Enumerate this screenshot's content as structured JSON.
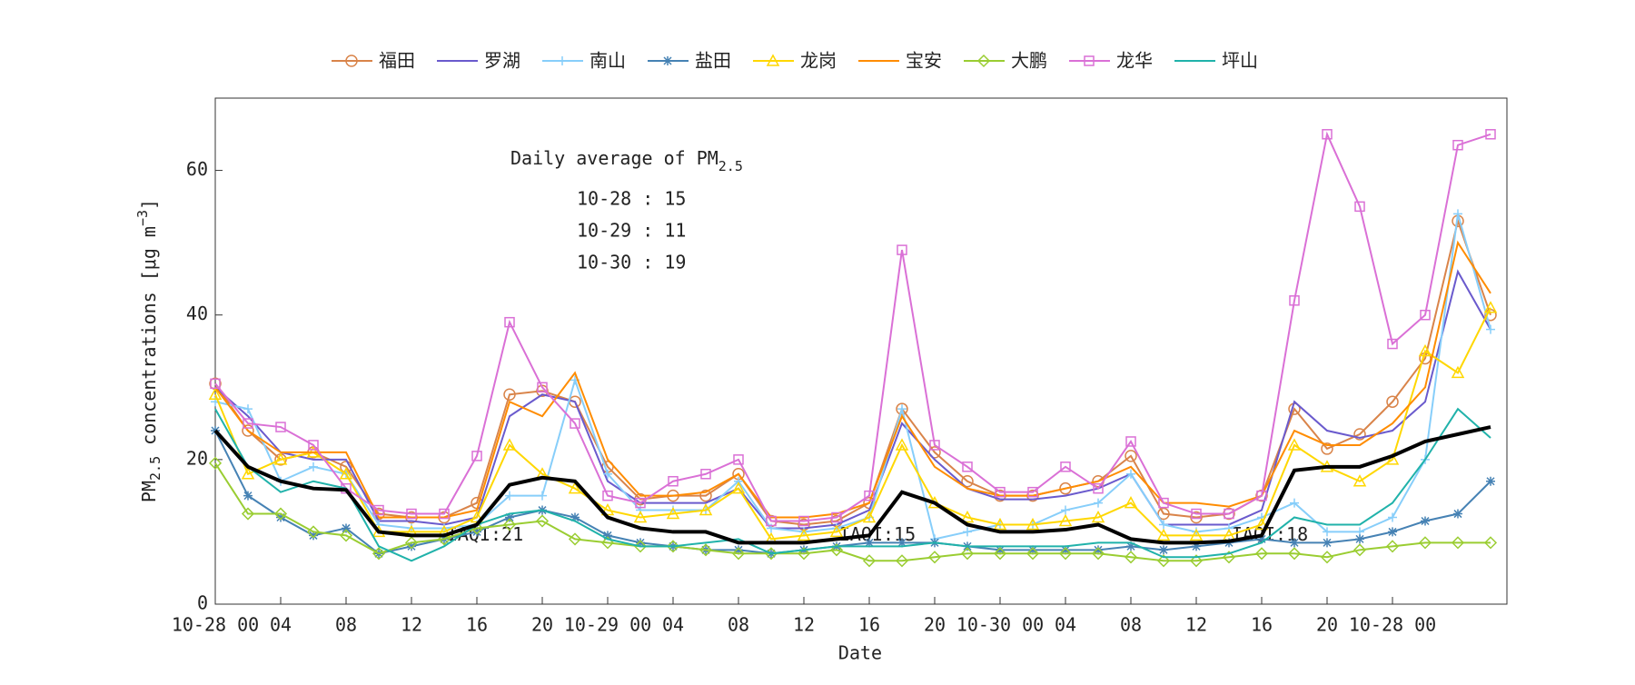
{
  "chart_data": {
    "type": "line",
    "x": [
      0,
      2,
      4,
      6,
      8,
      10,
      12,
      14,
      16,
      18,
      20,
      22,
      24,
      26,
      28,
      30,
      32,
      34,
      36,
      38,
      40,
      42,
      44,
      46,
      48,
      50,
      52,
      54,
      56,
      58,
      60,
      62,
      64,
      66,
      68,
      70,
      72,
      74,
      76,
      78
    ],
    "xlim": [
      0,
      79
    ],
    "xticks": [
      {
        "value": 0,
        "label": "10-28 00"
      },
      {
        "value": 4,
        "label": "04"
      },
      {
        "value": 8,
        "label": "08"
      },
      {
        "value": 12,
        "label": "12"
      },
      {
        "value": 16,
        "label": "16"
      },
      {
        "value": 20,
        "label": "20"
      },
      {
        "value": 24,
        "label": "10-29 00"
      },
      {
        "value": 28,
        "label": "04"
      },
      {
        "value": 32,
        "label": "08"
      },
      {
        "value": 36,
        "label": "12"
      },
      {
        "value": 40,
        "label": "16"
      },
      {
        "value": 44,
        "label": "20"
      },
      {
        "value": 48,
        "label": "10-30 00"
      },
      {
        "value": 52,
        "label": "04"
      },
      {
        "value": 56,
        "label": "08"
      },
      {
        "value": 60,
        "label": "12"
      },
      {
        "value": 64,
        "label": "16"
      },
      {
        "value": 68,
        "label": "20"
      },
      {
        "value": 72,
        "label": "10-28 00"
      }
    ],
    "ylim": [
      0,
      70
    ],
    "yticks": [
      0,
      20,
      40,
      60
    ],
    "xlabel": "Date",
    "ylabel": [
      "PM",
      "2.5",
      " concentrations [μg m",
      "−3",
      "]"
    ],
    "annotation_title": [
      "Daily average of PM",
      "2.5"
    ],
    "annotation_lines": [
      "10-28 : 15",
      "10-29 : 11",
      "10-30 : 19"
    ],
    "iaqi_labels": [
      "IAQI:21",
      "IAQI:15",
      "IAQI:18"
    ],
    "legend": "top",
    "series": [
      {
        "name": "福田",
        "color": "#d9844a",
        "marker": "circle",
        "values": [
          30.5,
          24,
          20,
          21,
          19,
          12.5,
          12,
          12,
          14,
          29,
          29.5,
          28,
          19,
          14.5,
          15,
          15,
          18,
          11.5,
          11,
          11.5,
          14,
          27,
          21,
          17,
          15,
          15,
          16,
          17,
          20.5,
          12.5,
          12,
          12.5,
          15,
          27,
          21.5,
          23.5,
          28,
          34,
          53,
          40
        ]
      },
      {
        "name": "罗湖",
        "color": "#6a5acd",
        "marker": "none",
        "values": [
          30,
          26,
          21,
          20,
          20,
          11.5,
          11.5,
          11,
          12,
          26,
          29,
          28,
          17,
          14,
          14,
          14,
          16,
          10.5,
          10.5,
          11,
          13,
          25,
          20,
          16,
          14.5,
          14.5,
          15,
          16,
          18,
          11,
          11,
          11,
          13,
          28,
          24,
          23,
          24,
          28,
          46,
          38
        ]
      },
      {
        "name": "南山",
        "color": "#87cefa",
        "marker": "plus",
        "values": [
          28,
          27,
          17,
          19,
          18,
          11,
          10.5,
          10.5,
          11,
          15,
          15,
          31,
          18,
          13,
          13,
          13,
          17,
          10.5,
          10,
          10.5,
          12,
          27,
          9,
          10,
          11,
          11,
          13,
          14,
          18,
          11,
          10,
          10.5,
          12,
          14,
          10,
          10,
          12,
          20,
          54,
          38
        ]
      },
      {
        "name": "盐田",
        "color": "#4682b4",
        "marker": "asterisk",
        "values": [
          24,
          15,
          12,
          9.5,
          10.5,
          7,
          8,
          9,
          10,
          12,
          13,
          12,
          9.5,
          8.5,
          8,
          7.5,
          7.5,
          7,
          7.5,
          8,
          8.5,
          8.5,
          8.5,
          8,
          7.5,
          7.5,
          7.5,
          7.5,
          8,
          7.5,
          8,
          8.5,
          9,
          8.5,
          8.5,
          9,
          10,
          11.5,
          12.5,
          17
        ]
      },
      {
        "name": "龙岗",
        "color": "#ffd700",
        "marker": "triangle",
        "values": [
          29,
          18,
          20,
          21,
          18,
          10,
          10,
          10,
          12,
          22,
          18,
          16,
          13,
          12,
          12.5,
          13,
          16,
          9,
          9.5,
          10,
          12,
          22,
          14,
          12,
          11,
          11,
          11.5,
          12,
          14,
          9.5,
          9.5,
          9.5,
          11,
          22,
          19,
          17,
          20,
          35,
          32,
          41
        ]
      },
      {
        "name": "宝安",
        "color": "#ff8c00",
        "marker": "none",
        "values": [
          30,
          24,
          21,
          21,
          21,
          12,
          12,
          12,
          13,
          28,
          26,
          32,
          20,
          15,
          15,
          15.5,
          18,
          12,
          12,
          12.5,
          14,
          26,
          19,
          16,
          15,
          15,
          16,
          17,
          19,
          14,
          14,
          13.5,
          15,
          24,
          22,
          22,
          25,
          30,
          50,
          43
        ]
      },
      {
        "name": "大鹏",
        "color": "#9acd32",
        "marker": "diamond",
        "values": [
          19.5,
          12.5,
          12.5,
          10,
          9.5,
          7,
          8.5,
          9,
          10.5,
          11,
          11.5,
          9,
          8.5,
          8,
          8,
          7.5,
          7,
          7,
          7,
          7.5,
          6,
          6,
          6.5,
          7,
          7,
          7,
          7,
          7,
          6.5,
          6,
          6,
          6.5,
          7,
          7,
          6.5,
          7.5,
          8,
          8.5,
          8.5,
          8.5
        ]
      },
      {
        "name": "龙华",
        "color": "#da70d6",
        "marker": "square",
        "values": [
          30.5,
          25,
          24.5,
          22,
          16,
          13,
          12.5,
          12.5,
          20.5,
          39,
          30,
          25,
          15,
          14,
          17,
          18,
          20,
          11.5,
          11.5,
          12,
          15,
          49,
          22,
          19,
          15.5,
          15.5,
          19,
          16,
          22.5,
          14,
          12.5,
          12.5,
          15,
          42,
          65,
          55,
          36,
          40,
          63.5,
          65
        ]
      },
      {
        "name": "坪山",
        "color": "#20b2aa",
        "marker": "none",
        "values": [
          27,
          19,
          15.5,
          17,
          16,
          8,
          6,
          8,
          11,
          12.5,
          13,
          11.5,
          9,
          8,
          8,
          8.5,
          9,
          7,
          7.5,
          8,
          8,
          8,
          8.5,
          8,
          8,
          8,
          8,
          8.5,
          8.5,
          6.5,
          6.5,
          7,
          8.5,
          12,
          11,
          11,
          14,
          20,
          27,
          23
        ]
      },
      {
        "color": "#000000",
        "marker": "none",
        "width": 4,
        "values": [
          24,
          19,
          17,
          16,
          15.8,
          10,
          9.5,
          9.5,
          11,
          16.5,
          17.5,
          17,
          12,
          10.5,
          10,
          10,
          8.5,
          8.5,
          8.5,
          9,
          9.5,
          15.5,
          14,
          11,
          10,
          10,
          10.3,
          11,
          9,
          8.5,
          8.5,
          8.7,
          9.5,
          18.5,
          19,
          19,
          20.5,
          22.5,
          23.5,
          24.5
        ]
      }
    ]
  }
}
